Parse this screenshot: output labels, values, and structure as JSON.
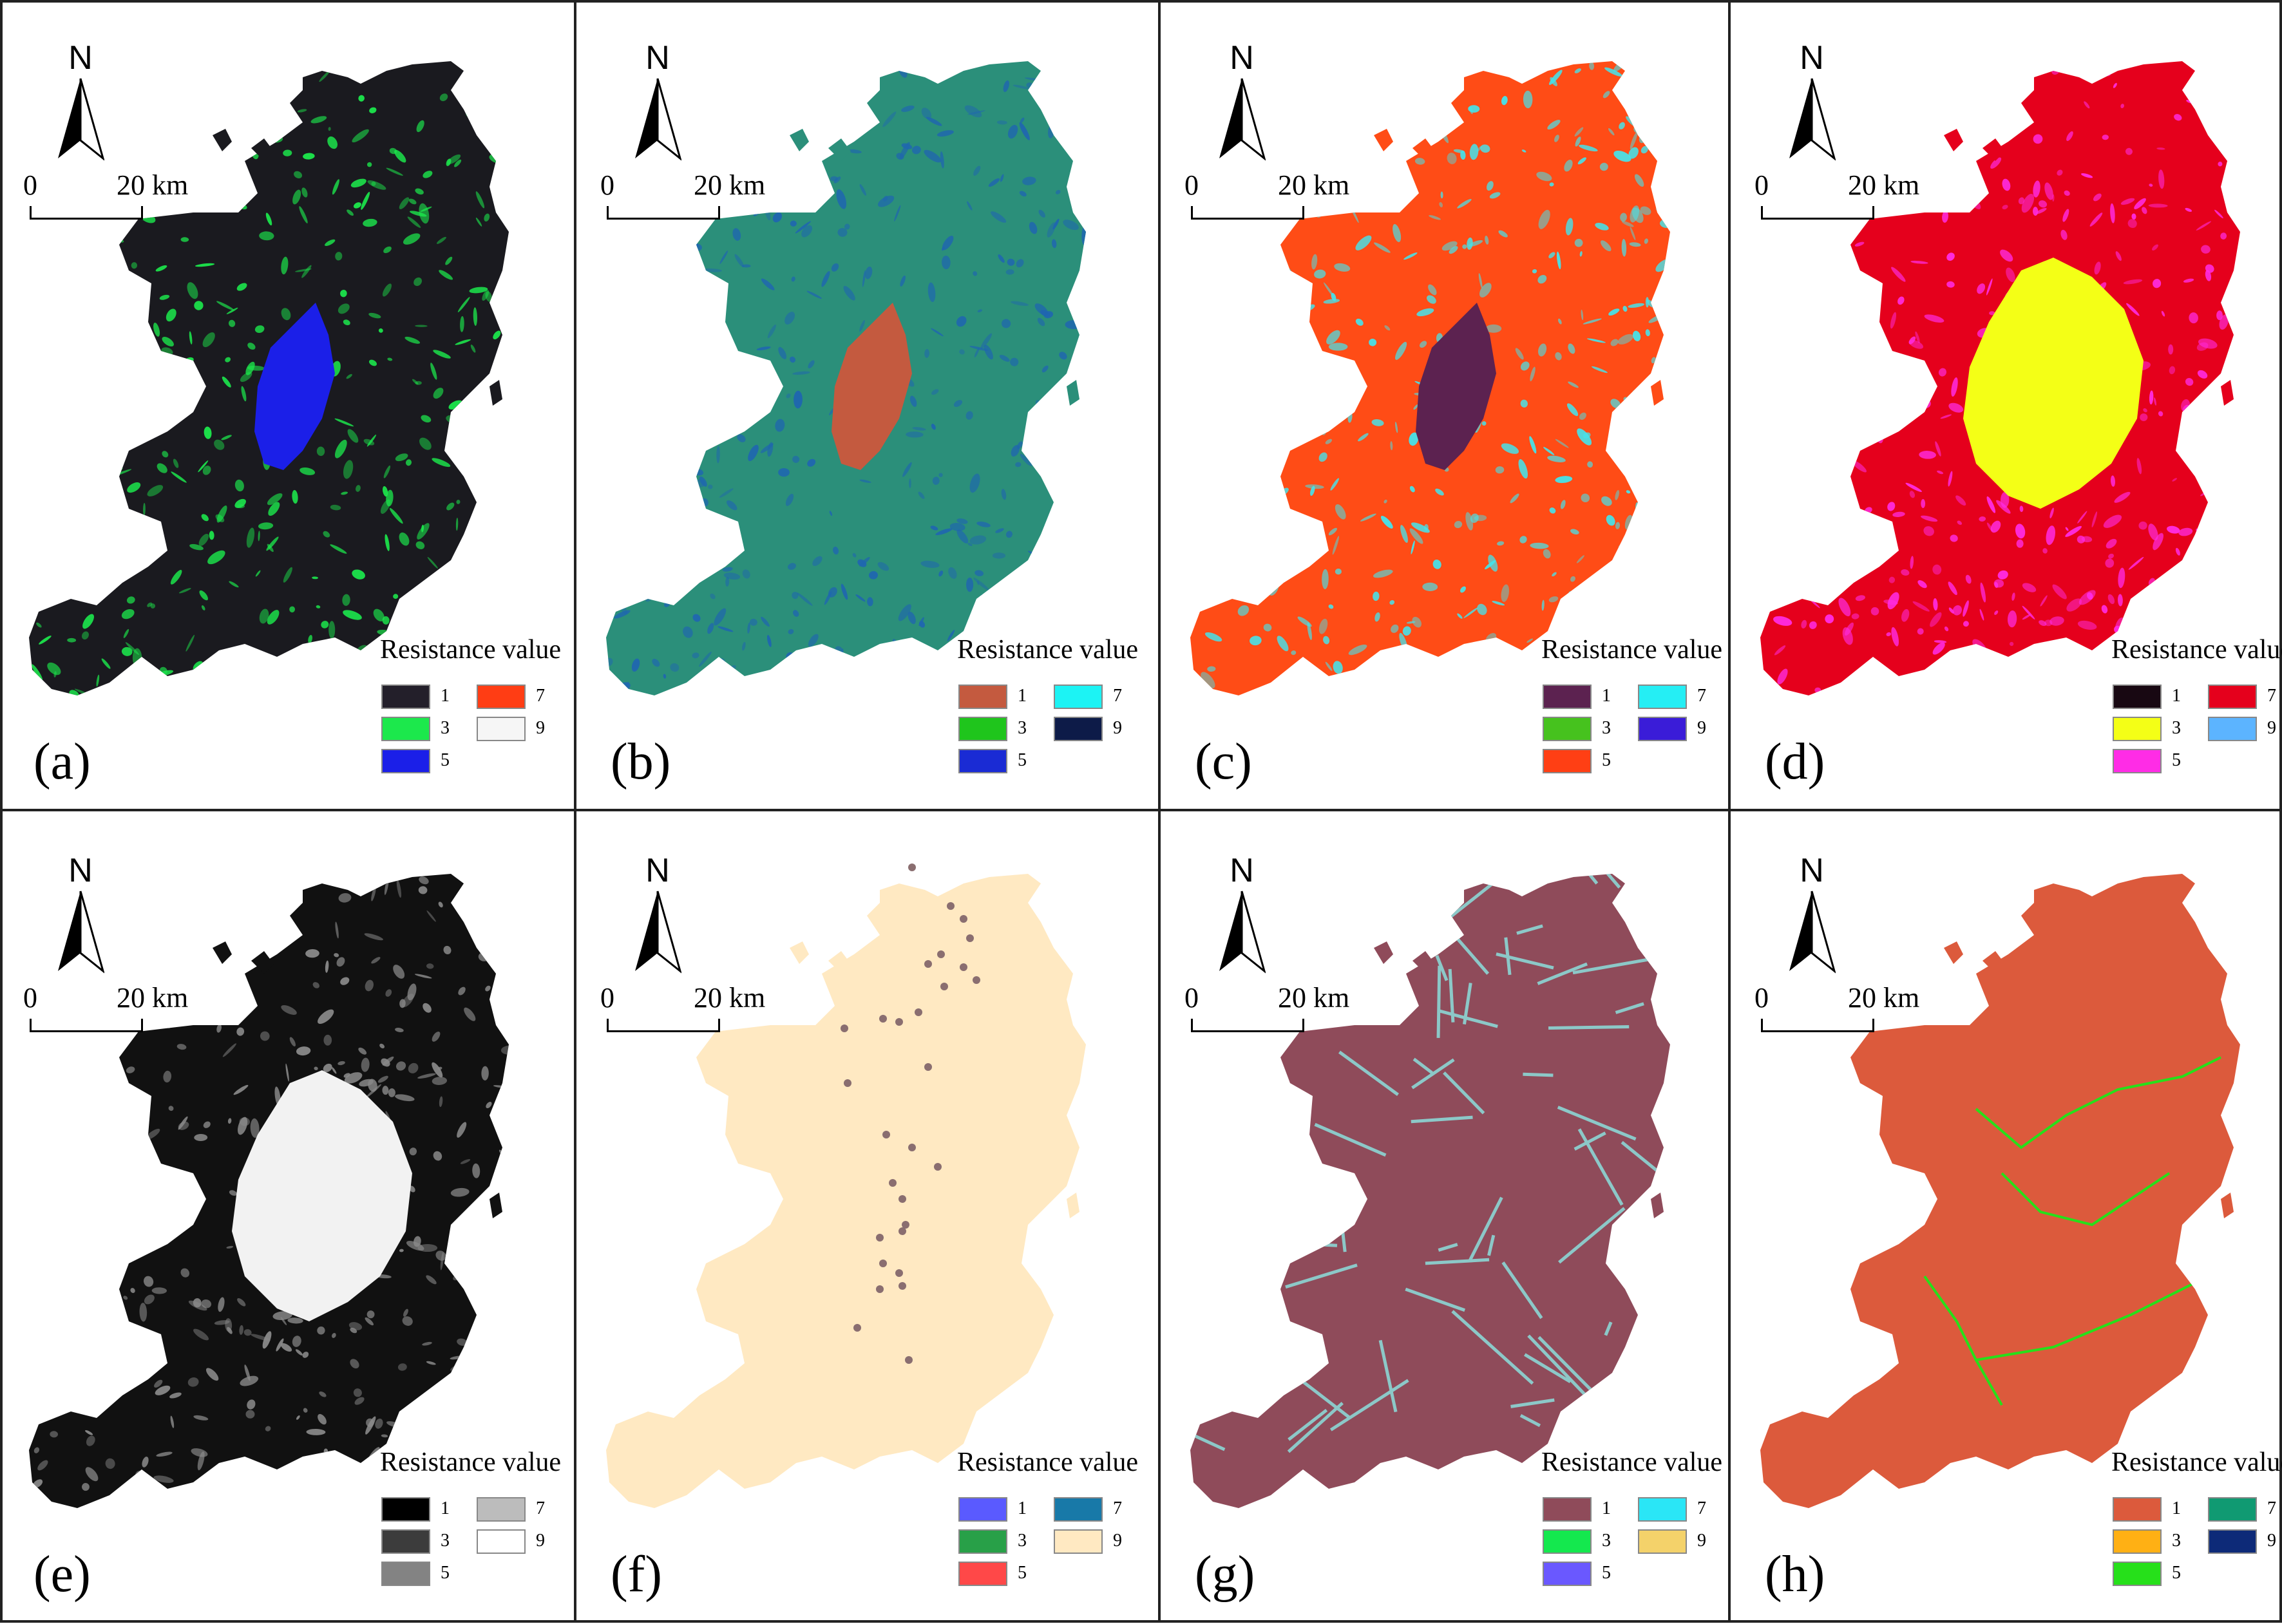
{
  "north_label": "N",
  "scale": {
    "start": "0",
    "end": "20 km"
  },
  "legend_title": "Resistance value",
  "legend_values": [
    "1",
    "3",
    "5",
    "7",
    "9"
  ],
  "panels": [
    {
      "letter": "(a)",
      "colors": {
        "1": "#231f2a",
        "3": "#1ce84c",
        "5": "#1b1fe8",
        "7": "#ff3d14",
        "9": "#f6f6f6"
      },
      "map_fill": "#1a1a1f",
      "map_accent": "#1ce84c",
      "center_fill": "#1b1fe8",
      "center_shape": "lake"
    },
    {
      "letter": "(b)",
      "colors": {
        "1": "#c45a3f",
        "3": "#1fc51c",
        "5": "#1a2bd4",
        "7": "#1cf3f4",
        "9": "#0d1b48"
      },
      "map_fill": "#2b8f7a",
      "map_accent": "#1f66b0",
      "center_fill": "#c45a3f",
      "center_shape": "lake"
    },
    {
      "letter": "(c)",
      "colors": {
        "1": "#5c2250",
        "3": "#46c21e",
        "5": "#ff3f14",
        "7": "#25eef4",
        "9": "#3a1cd8"
      },
      "map_fill": "#ff4c16",
      "map_accent": "#44e4ec",
      "center_fill": "#5c2250",
      "center_shape": "lake"
    },
    {
      "letter": "(d)",
      "colors": {
        "1": "#180812",
        "3": "#f4ff16",
        "5": "#ff2ce6",
        "7": "#e5001c",
        "9": "#5cb4ff"
      },
      "map_fill": "#e5001c",
      "map_accent": "#ff2ce6",
      "center_fill": "#f4ff16",
      "center_shape": "wide"
    },
    {
      "letter": "(e)",
      "colors": {
        "1": "#000000",
        "3": "#3c3c3c",
        "5": "#838383",
        "7": "#bcbcbc",
        "9": "#ffffff"
      },
      "map_fill": "#111111",
      "map_accent": "#8a8a8a",
      "center_fill": "#f2f2f2",
      "center_shape": "wide"
    },
    {
      "letter": "(f)",
      "colors": {
        "1": "#5a5aff",
        "3": "#28a048",
        "5": "#ff4848",
        "7": "#1879a8",
        "9": "#ffe9c2"
      },
      "map_fill": "#ffe9c2",
      "map_accent": "#ffe9c2",
      "center_fill": "#ffe9c2",
      "center_shape": "none"
    },
    {
      "letter": "(g)",
      "colors": {
        "1": "#8f4b5a",
        "3": "#14e84e",
        "5": "#6a58ff",
        "7": "#2ae6f6",
        "9": "#f4d26a"
      },
      "map_fill": "#8f4b5a",
      "map_accent": "#8cc8c8",
      "center_fill": "#8f4b5a",
      "center_shape": "none"
    },
    {
      "letter": "(h)",
      "colors": {
        "1": "#dc5a3c",
        "3": "#ffb014",
        "5": "#26e01a",
        "7": "#109a72",
        "9": "#0d2a78"
      },
      "map_fill": "#dc5a3c",
      "map_accent": "#dc5a3c",
      "center_fill": "#dc5a3c",
      "center_shape": "none"
    }
  ]
}
